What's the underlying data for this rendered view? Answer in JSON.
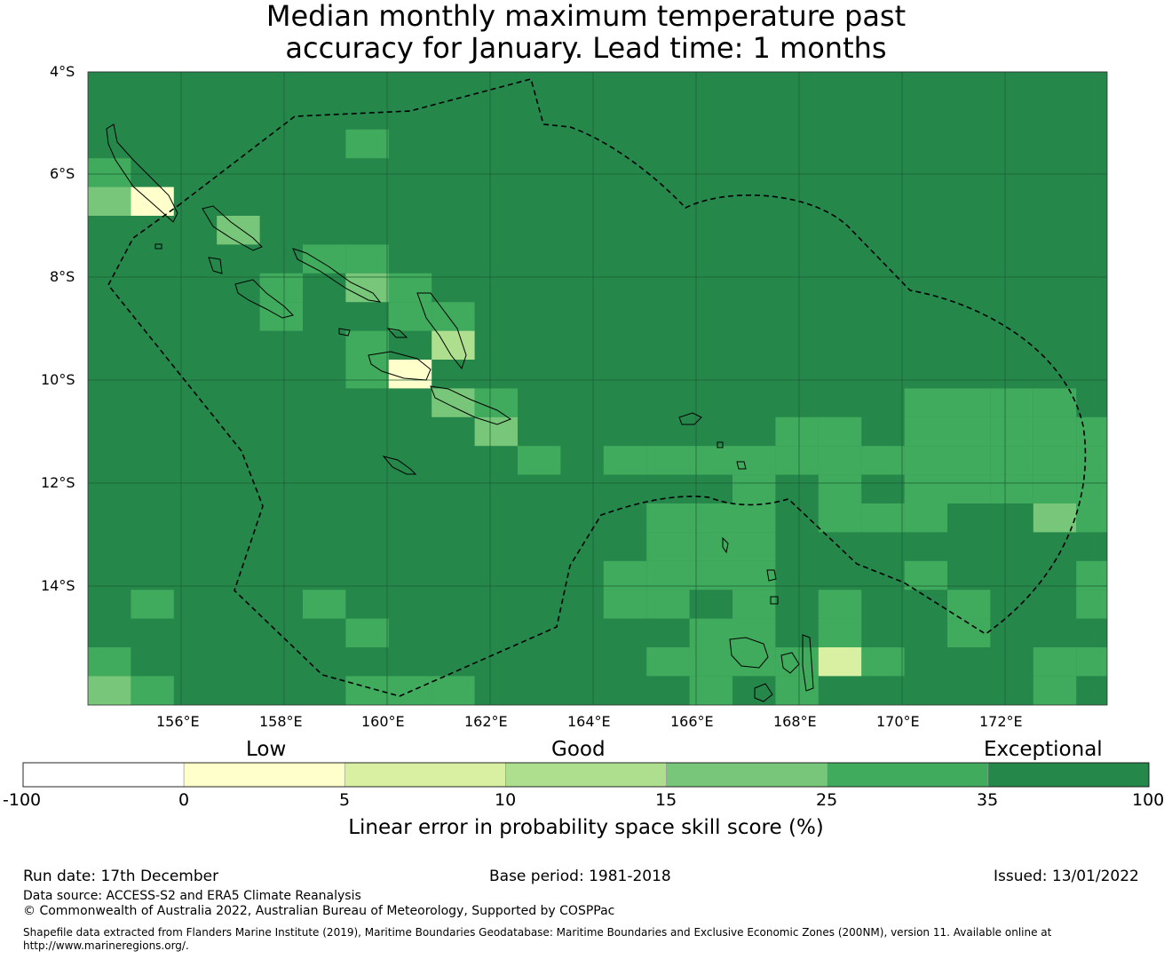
{
  "title": {
    "line1": "Median monthly maximum temperature past",
    "line2": "accuracy for January. Lead time: 1 months"
  },
  "map": {
    "lat_labels": [
      "4°S",
      "6°S",
      "8°S",
      "10°S",
      "12°S",
      "14°S"
    ],
    "lon_labels": [
      "156°E",
      "158°E",
      "160°E",
      "162°E",
      "164°E",
      "166°E",
      "168°E",
      "170°E",
      "172°E"
    ],
    "eez_boundary": "dashed",
    "colors": {
      "exceptional": "#25874a",
      "c25_35": "#40aa5d",
      "c15_25": "#78c67a",
      "c10_15": "#addf8e",
      "c5_10": "#d9f0a3",
      "c0_5": "#ffffcc",
      "below0": "#ffffff"
    }
  },
  "colorbar": {
    "categories": [
      "Low",
      "Good",
      "Exceptional"
    ],
    "ticks": [
      "-100",
      "0",
      "5",
      "10",
      "15",
      "25",
      "35",
      "100"
    ],
    "colors": [
      "#ffffff",
      "#ffffcc",
      "#d9f0a3",
      "#addf8e",
      "#78c67a",
      "#40aa5d",
      "#25874a"
    ],
    "label": "Linear error in probability space skill score (%)"
  },
  "footer": {
    "run_date": "Run date: 17th December",
    "base_period": "Base period: 1981-2018",
    "issued": "Issued: 13/01/2022",
    "data_source": "Data source: ACCESS-S2 and ERA5 Climate Reanalysis",
    "copyright": "© Commonwealth of Australia 2022, Australian Bureau of Meteorology, Supported by COSPPac",
    "shapefile_line1": "Shapefile data extracted from Flanders Marine Institute (2019), Maritime Boundaries Geodatabase: Maritime Boundaries and Exclusive Economic Zones (200NM), version 11. Available online at",
    "shapefile_line2": "http://www.marineregions.org/."
  }
}
